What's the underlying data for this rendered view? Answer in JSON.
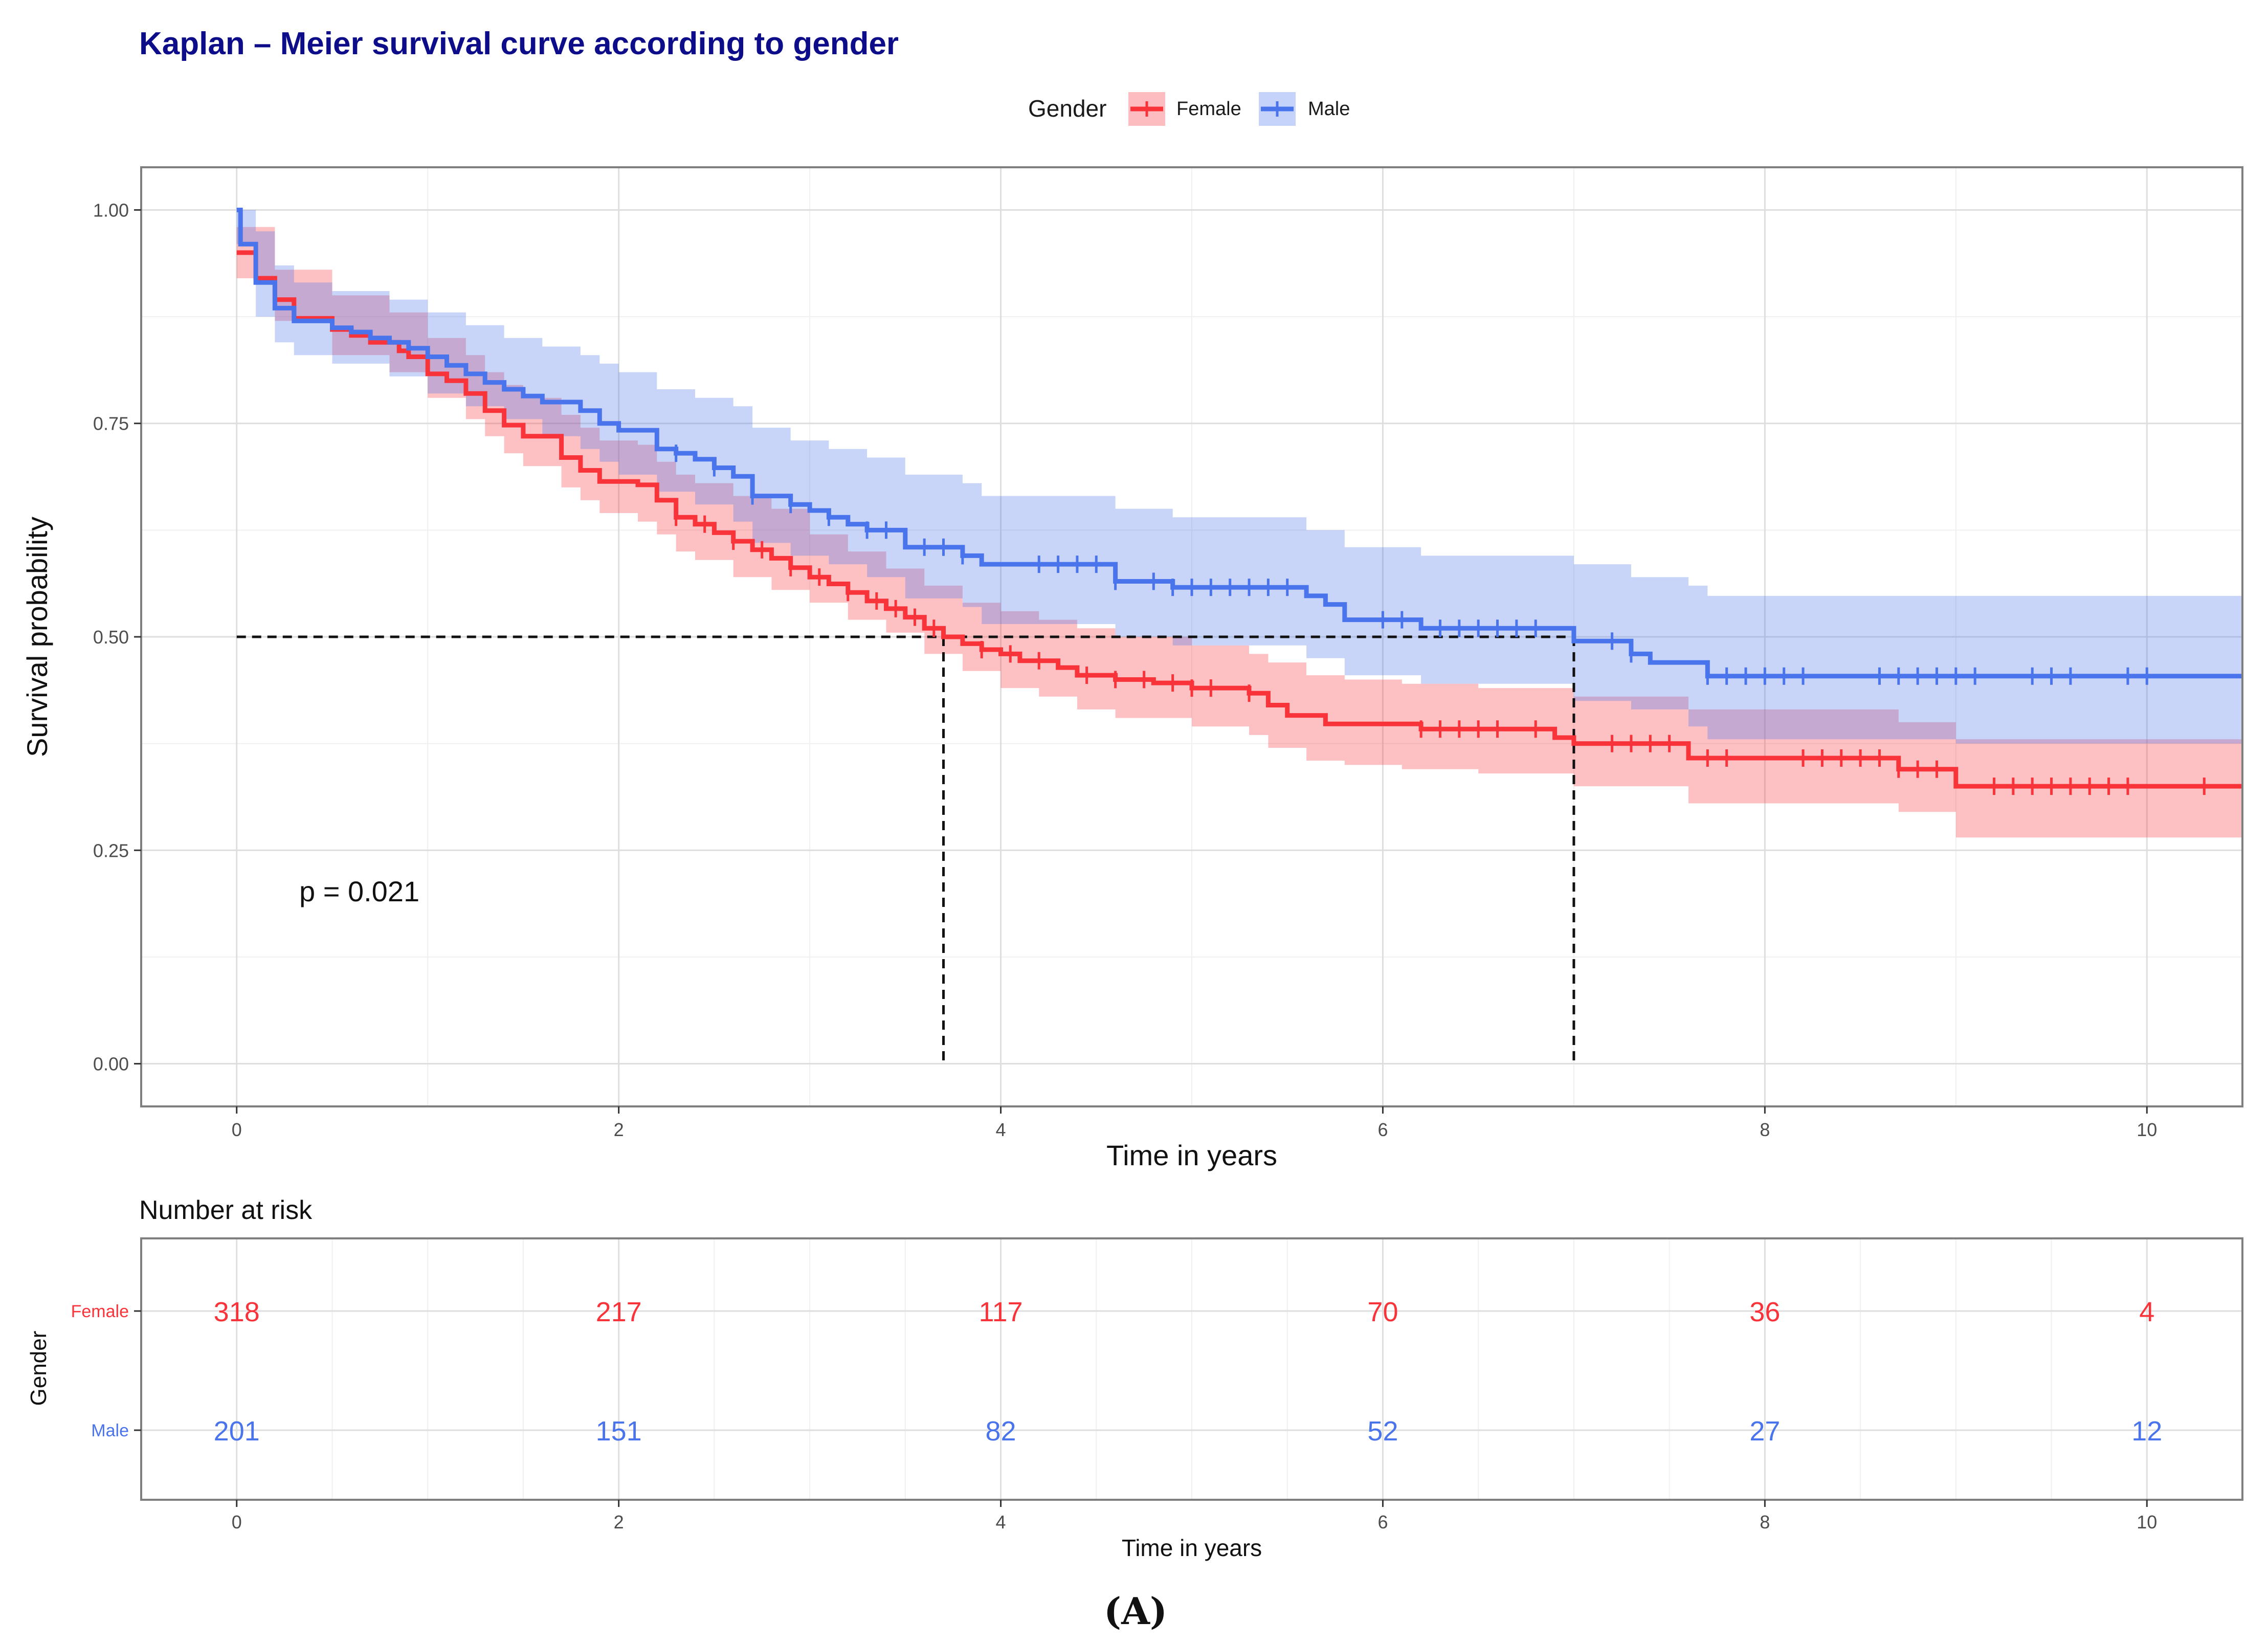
{
  "chart_data": {
    "type": "line",
    "subtype": "kaplan-meier",
    "title": "Kaplan – Meier survival curve according to gender",
    "xlabel": "Time in years",
    "ylabel": "Survival probability",
    "xlim": [
      -0.5,
      10.5
    ],
    "ylim": [
      -0.05,
      1.05
    ],
    "x_ticks": [
      0,
      2,
      4,
      6,
      8,
      10
    ],
    "x_tick_labels": [
      "0",
      "2",
      "4",
      "6",
      "8",
      "10"
    ],
    "y_ticks": [
      0,
      0.25,
      0.5,
      0.75,
      1.0
    ],
    "y_tick_labels": [
      "0.00",
      "0.25",
      "0.50",
      "0.75",
      "1.00"
    ],
    "legend": {
      "title": "Gender",
      "position": "top",
      "entries": [
        "Female",
        "Male"
      ]
    },
    "annotation": "p = 0.021",
    "median_line": {
      "y": 0.5,
      "x_values": [
        3.7,
        7.0
      ]
    },
    "colors": {
      "Female": "#f8333a",
      "Male": "#4a74ec"
    },
    "series": [
      {
        "name": "Female",
        "color": "#f8333a",
        "steps": [
          [
            0,
            0.95
          ],
          [
            0.1,
            0.92
          ],
          [
            0.2,
            0.895
          ],
          [
            0.3,
            0.873
          ],
          [
            0.5,
            0.86
          ],
          [
            0.6,
            0.853
          ],
          [
            0.7,
            0.845
          ],
          [
            0.85,
            0.835
          ],
          [
            0.9,
            0.828
          ],
          [
            1.0,
            0.808
          ],
          [
            1.1,
            0.8
          ],
          [
            1.2,
            0.785
          ],
          [
            1.3,
            0.765
          ],
          [
            1.4,
            0.748
          ],
          [
            1.5,
            0.735
          ],
          [
            1.7,
            0.71
          ],
          [
            1.8,
            0.695
          ],
          [
            1.9,
            0.682
          ],
          [
            2.1,
            0.678
          ],
          [
            2.2,
            0.66
          ],
          [
            2.3,
            0.64
          ],
          [
            2.4,
            0.632
          ],
          [
            2.5,
            0.622
          ],
          [
            2.6,
            0.612
          ],
          [
            2.7,
            0.602
          ],
          [
            2.8,
            0.592
          ],
          [
            2.9,
            0.581
          ],
          [
            3.0,
            0.57
          ],
          [
            3.1,
            0.562
          ],
          [
            3.2,
            0.552
          ],
          [
            3.3,
            0.542
          ],
          [
            3.4,
            0.533
          ],
          [
            3.5,
            0.523
          ],
          [
            3.6,
            0.51
          ],
          [
            3.7,
            0.5
          ],
          [
            3.8,
            0.492
          ],
          [
            3.9,
            0.485
          ],
          [
            4.0,
            0.48
          ],
          [
            4.1,
            0.472
          ],
          [
            4.3,
            0.464
          ],
          [
            4.4,
            0.455
          ],
          [
            4.6,
            0.45
          ],
          [
            4.8,
            0.446
          ],
          [
            5.0,
            0.44
          ],
          [
            5.3,
            0.434
          ],
          [
            5.4,
            0.42
          ],
          [
            5.5,
            0.408
          ],
          [
            5.7,
            0.398
          ],
          [
            6.2,
            0.392
          ],
          [
            6.9,
            0.382
          ],
          [
            7.0,
            0.375
          ],
          [
            7.6,
            0.358
          ],
          [
            8.7,
            0.345
          ],
          [
            9.0,
            0.325
          ],
          [
            10.5,
            0.325
          ]
        ],
        "censor_times": [
          2.3,
          2.45,
          2.6,
          2.75,
          2.9,
          3.05,
          3.2,
          3.35,
          3.45,
          3.55,
          3.65,
          3.9,
          4.05,
          4.2,
          4.45,
          4.6,
          4.75,
          4.9,
          5.0,
          5.1,
          5.3,
          6.2,
          6.3,
          6.4,
          6.5,
          6.6,
          6.8,
          7.2,
          7.3,
          7.4,
          7.5,
          7.7,
          7.8,
          8.2,
          8.3,
          8.4,
          8.5,
          8.6,
          8.7,
          8.8,
          8.9,
          9.2,
          9.3,
          9.4,
          9.5,
          9.6,
          9.7,
          9.8,
          9.9,
          10.3
        ],
        "ci_lower": [
          [
            0,
            0.92
          ],
          [
            0.2,
            0.87
          ],
          [
            0.5,
            0.83
          ],
          [
            0.8,
            0.81
          ],
          [
            1.0,
            0.78
          ],
          [
            1.2,
            0.755
          ],
          [
            1.3,
            0.735
          ],
          [
            1.4,
            0.715
          ],
          [
            1.5,
            0.7
          ],
          [
            1.7,
            0.675
          ],
          [
            1.8,
            0.66
          ],
          [
            1.9,
            0.645
          ],
          [
            2.1,
            0.635
          ],
          [
            2.2,
            0.62
          ],
          [
            2.3,
            0.6
          ],
          [
            2.4,
            0.59
          ],
          [
            2.6,
            0.57
          ],
          [
            2.8,
            0.555
          ],
          [
            3.0,
            0.54
          ],
          [
            3.2,
            0.52
          ],
          [
            3.4,
            0.505
          ],
          [
            3.6,
            0.48
          ],
          [
            3.8,
            0.46
          ],
          [
            4.0,
            0.44
          ],
          [
            4.2,
            0.43
          ],
          [
            4.4,
            0.415
          ],
          [
            4.6,
            0.405
          ],
          [
            5.0,
            0.395
          ],
          [
            5.3,
            0.385
          ],
          [
            5.4,
            0.37
          ],
          [
            5.6,
            0.355
          ],
          [
            5.8,
            0.35
          ],
          [
            6.1,
            0.345
          ],
          [
            6.5,
            0.34
          ],
          [
            7.0,
            0.325
          ],
          [
            7.6,
            0.305
          ],
          [
            8.7,
            0.295
          ],
          [
            9.0,
            0.265
          ],
          [
            10.5,
            0.265
          ]
        ],
        "ci_upper": [
          [
            0,
            0.98
          ],
          [
            0.2,
            0.93
          ],
          [
            0.5,
            0.9
          ],
          [
            0.8,
            0.88
          ],
          [
            1.0,
            0.85
          ],
          [
            1.2,
            0.83
          ],
          [
            1.3,
            0.81
          ],
          [
            1.4,
            0.795
          ],
          [
            1.5,
            0.78
          ],
          [
            1.7,
            0.76
          ],
          [
            1.8,
            0.745
          ],
          [
            1.9,
            0.73
          ],
          [
            2.1,
            0.725
          ],
          [
            2.2,
            0.705
          ],
          [
            2.3,
            0.69
          ],
          [
            2.4,
            0.68
          ],
          [
            2.6,
            0.665
          ],
          [
            2.8,
            0.65
          ],
          [
            3.0,
            0.62
          ],
          [
            3.2,
            0.6
          ],
          [
            3.4,
            0.58
          ],
          [
            3.6,
            0.56
          ],
          [
            3.8,
            0.54
          ],
          [
            4.0,
            0.53
          ],
          [
            4.2,
            0.52
          ],
          [
            4.4,
            0.51
          ],
          [
            4.6,
            0.5
          ],
          [
            5.0,
            0.49
          ],
          [
            5.3,
            0.48
          ],
          [
            5.4,
            0.47
          ],
          [
            5.6,
            0.455
          ],
          [
            5.8,
            0.45
          ],
          [
            6.1,
            0.445
          ],
          [
            6.5,
            0.44
          ],
          [
            7.0,
            0.43
          ],
          [
            7.6,
            0.415
          ],
          [
            8.7,
            0.4
          ],
          [
            9.0,
            0.38
          ],
          [
            10.5,
            0.38
          ]
        ]
      },
      {
        "name": "Male",
        "color": "#4a74ec",
        "steps": [
          [
            0,
            1.0
          ],
          [
            0.02,
            0.96
          ],
          [
            0.1,
            0.915
          ],
          [
            0.2,
            0.885
          ],
          [
            0.3,
            0.87
          ],
          [
            0.5,
            0.862
          ],
          [
            0.6,
            0.857
          ],
          [
            0.7,
            0.85
          ],
          [
            0.8,
            0.845
          ],
          [
            0.9,
            0.838
          ],
          [
            1.0,
            0.828
          ],
          [
            1.1,
            0.818
          ],
          [
            1.2,
            0.808
          ],
          [
            1.3,
            0.798
          ],
          [
            1.4,
            0.79
          ],
          [
            1.5,
            0.782
          ],
          [
            1.6,
            0.775
          ],
          [
            1.8,
            0.765
          ],
          [
            1.9,
            0.75
          ],
          [
            2.0,
            0.742
          ],
          [
            2.2,
            0.72
          ],
          [
            2.3,
            0.715
          ],
          [
            2.4,
            0.708
          ],
          [
            2.5,
            0.698
          ],
          [
            2.6,
            0.688
          ],
          [
            2.7,
            0.665
          ],
          [
            2.9,
            0.655
          ],
          [
            3.0,
            0.648
          ],
          [
            3.1,
            0.64
          ],
          [
            3.2,
            0.632
          ],
          [
            3.3,
            0.625
          ],
          [
            3.5,
            0.605
          ],
          [
            3.8,
            0.595
          ],
          [
            3.9,
            0.585
          ],
          [
            4.6,
            0.565
          ],
          [
            4.9,
            0.558
          ],
          [
            5.6,
            0.548
          ],
          [
            5.7,
            0.538
          ],
          [
            5.8,
            0.52
          ],
          [
            6.2,
            0.51
          ],
          [
            7.0,
            0.495
          ],
          [
            7.3,
            0.48
          ],
          [
            7.4,
            0.47
          ],
          [
            7.7,
            0.454
          ],
          [
            10.5,
            0.454
          ]
        ],
        "censor_times": [
          2.3,
          2.5,
          2.7,
          2.9,
          3.1,
          3.3,
          3.4,
          3.6,
          3.7,
          3.8,
          4.2,
          4.3,
          4.4,
          4.5,
          4.6,
          4.8,
          4.9,
          5.0,
          5.1,
          5.2,
          5.3,
          5.4,
          5.5,
          6.0,
          6.1,
          6.3,
          6.4,
          6.5,
          6.6,
          6.7,
          6.8,
          7.2,
          7.3,
          7.7,
          7.8,
          7.9,
          8.0,
          8.1,
          8.2,
          8.6,
          8.7,
          8.8,
          8.9,
          9.0,
          9.1,
          9.4,
          9.5,
          9.6,
          9.9,
          10.0
        ],
        "ci_lower": [
          [
            0,
            0.96
          ],
          [
            0.1,
            0.875
          ],
          [
            0.2,
            0.845
          ],
          [
            0.3,
            0.83
          ],
          [
            0.5,
            0.82
          ],
          [
            0.8,
            0.805
          ],
          [
            1.0,
            0.785
          ],
          [
            1.2,
            0.77
          ],
          [
            1.4,
            0.755
          ],
          [
            1.6,
            0.735
          ],
          [
            1.8,
            0.72
          ],
          [
            1.9,
            0.705
          ],
          [
            2.0,
            0.69
          ],
          [
            2.2,
            0.67
          ],
          [
            2.4,
            0.655
          ],
          [
            2.6,
            0.635
          ],
          [
            2.7,
            0.61
          ],
          [
            2.9,
            0.595
          ],
          [
            3.1,
            0.585
          ],
          [
            3.3,
            0.57
          ],
          [
            3.5,
            0.545
          ],
          [
            3.8,
            0.535
          ],
          [
            3.9,
            0.515
          ],
          [
            4.6,
            0.5
          ],
          [
            4.9,
            0.49
          ],
          [
            5.6,
            0.475
          ],
          [
            5.8,
            0.455
          ],
          [
            6.2,
            0.445
          ],
          [
            7.0,
            0.425
          ],
          [
            7.3,
            0.415
          ],
          [
            7.6,
            0.395
          ],
          [
            7.7,
            0.38
          ],
          [
            9.0,
            0.375
          ],
          [
            10.5,
            0.375
          ]
        ],
        "ci_upper": [
          [
            0,
            1.0
          ],
          [
            0.1,
            0.975
          ],
          [
            0.2,
            0.935
          ],
          [
            0.3,
            0.915
          ],
          [
            0.5,
            0.905
          ],
          [
            0.8,
            0.895
          ],
          [
            1.0,
            0.88
          ],
          [
            1.2,
            0.865
          ],
          [
            1.4,
            0.85
          ],
          [
            1.6,
            0.84
          ],
          [
            1.8,
            0.83
          ],
          [
            1.9,
            0.82
          ],
          [
            2.0,
            0.81
          ],
          [
            2.2,
            0.79
          ],
          [
            2.4,
            0.78
          ],
          [
            2.6,
            0.77
          ],
          [
            2.7,
            0.745
          ],
          [
            2.9,
            0.73
          ],
          [
            3.1,
            0.72
          ],
          [
            3.3,
            0.71
          ],
          [
            3.5,
            0.69
          ],
          [
            3.8,
            0.68
          ],
          [
            3.9,
            0.665
          ],
          [
            4.6,
            0.65
          ],
          [
            4.9,
            0.64
          ],
          [
            5.6,
            0.625
          ],
          [
            5.8,
            0.605
          ],
          [
            6.2,
            0.595
          ],
          [
            7.0,
            0.585
          ],
          [
            7.3,
            0.57
          ],
          [
            7.6,
            0.56
          ],
          [
            7.7,
            0.548
          ],
          [
            10.5,
            0.548
          ]
        ]
      }
    ],
    "risk_table": {
      "title": "Number at risk",
      "ylabel": "Gender",
      "xlabel": "Time in years",
      "times": [
        0,
        2,
        4,
        6,
        8,
        10
      ],
      "tick_labels": [
        "0",
        "2",
        "4",
        "6",
        "8",
        "10"
      ],
      "rows": [
        {
          "name": "Female",
          "counts": [
            "318",
            "217",
            "117",
            "70",
            "36",
            "4"
          ]
        },
        {
          "name": "Male",
          "counts": [
            "201",
            "151",
            "82",
            "52",
            "27",
            "12"
          ]
        }
      ]
    },
    "caption": "(A)"
  }
}
